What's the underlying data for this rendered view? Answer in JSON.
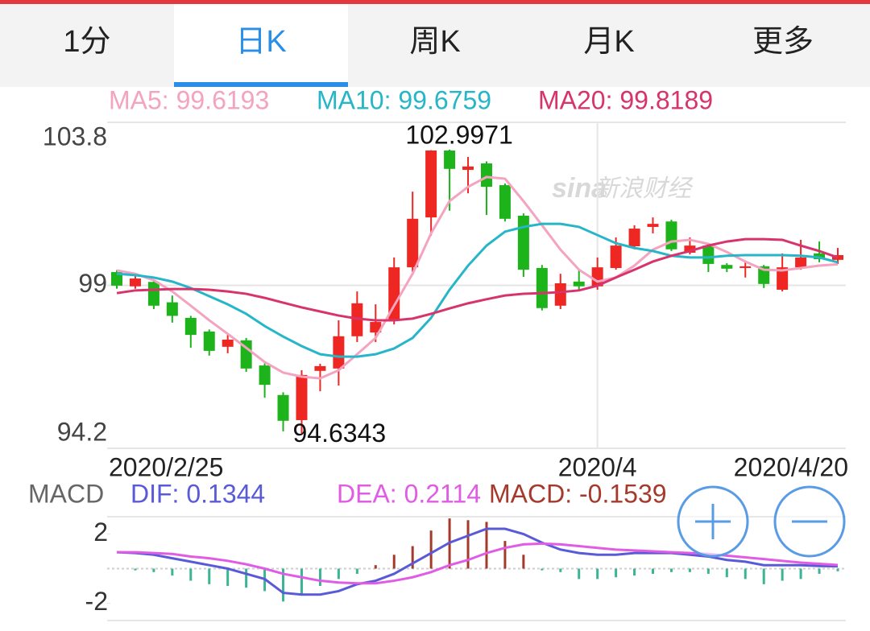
{
  "tabs": [
    "1分",
    "日K",
    "周K",
    "月K",
    "更多"
  ],
  "active_tab": 1,
  "chart_data": [
    {
      "type": "candlestick",
      "watermark_logo": "sina",
      "watermark": "新浪财经",
      "categories": [
        "2020/2/25",
        null,
        null,
        null,
        null,
        null,
        null,
        null,
        null,
        null,
        null,
        null,
        null,
        null,
        null,
        null,
        null,
        null,
        null,
        null,
        null,
        null,
        null,
        null,
        null,
        null,
        "2020/4",
        null,
        null,
        null,
        null,
        null,
        null,
        null,
        null,
        null,
        null,
        null,
        null,
        "2020/4/20"
      ],
      "open": [
        99.39,
        98.97,
        99.1,
        98.5,
        98.04,
        97.64,
        97.19,
        97.38,
        96.64,
        95.77,
        95.03,
        96.48,
        96.55,
        97.5,
        97.61,
        97.97,
        99.53,
        101.0,
        102.97,
        102.4,
        102.59,
        101.95,
        101.05,
        99.51,
        98.4,
        99.11,
        98.97,
        99.51,
        100.15,
        100.72,
        100.88,
        99.96,
        100.17,
        99.6,
        99.51,
        99.56,
        98.87,
        99.53,
        99.94,
        99.75
      ],
      "high": [
        99.45,
        99.3,
        99.15,
        98.7,
        98.1,
        97.7,
        97.57,
        97.45,
        96.7,
        95.85,
        96.5,
        96.69,
        97.97,
        98.82,
        98.44,
        99.82,
        101.76,
        102.98,
        102.9971,
        102.78,
        102.65,
        102.0,
        101.12,
        99.6,
        99.34,
        99.46,
        99.82,
        100.41,
        100.77,
        101.0,
        100.93,
        100.41,
        100.2,
        99.65,
        99.7,
        99.6,
        99.94,
        100.34,
        100.29,
        100.1
      ],
      "low": [
        98.9,
        98.9,
        98.3,
        97.9,
        97.16,
        96.93,
        97.0,
        96.45,
        95.69,
        94.7,
        94.6343,
        95.88,
        96.05,
        97.33,
        97.33,
        97.85,
        99.4,
        100.46,
        101.2,
        101.71,
        101.07,
        100.88,
        99.25,
        98.26,
        98.3,
        98.87,
        98.87,
        99.46,
        100.06,
        100.53,
        100.01,
        99.91,
        99.39,
        99.39,
        99.23,
        98.92,
        98.82,
        99.46,
        99.68,
        99.63
      ],
      "close": [
        98.99,
        99.2,
        98.4,
        98.1,
        97.54,
        97.07,
        97.4,
        96.55,
        96.07,
        95.01,
        96.36,
        96.62,
        97.5,
        98.47,
        97.92,
        99.53,
        100.96,
        102.97,
        102.43,
        102.5,
        101.9,
        100.96,
        99.46,
        98.33,
        99.06,
        98.97,
        99.53,
        100.17,
        100.67,
        100.81,
        100.06,
        100.17,
        99.63,
        99.49,
        99.56,
        99.04,
        99.53,
        99.82,
        99.77,
        99.89
      ],
      "up_color": "#ee2722",
      "down_color": "#1db31a",
      "series": [
        {
          "name": "MA5: 99.6193",
          "color": "#f4a3c0",
          "values": [
            99.44,
            99.34,
            99.15,
            98.82,
            98.4,
            97.97,
            97.57,
            97.16,
            96.74,
            96.43,
            96.31,
            96.26,
            96.5,
            96.97,
            97.45,
            98.4,
            99.34,
            100.53,
            101.48,
            101.9,
            102.19,
            102.14,
            101.48,
            100.77,
            100.05,
            99.46,
            99.11,
            99.23,
            99.58,
            100.05,
            100.29,
            100.34,
            100.22,
            99.98,
            99.7,
            99.46,
            99.44,
            99.51,
            99.58,
            99.6193
          ]
        },
        {
          "name": "MA10: 99.6759",
          "color": "#26b6c8",
          "values": [
            99.34,
            99.3,
            99.23,
            99.11,
            98.92,
            98.68,
            98.44,
            98.16,
            97.8,
            97.49,
            97.21,
            96.97,
            96.9,
            96.9,
            96.97,
            97.14,
            97.45,
            98.04,
            98.87,
            99.58,
            100.17,
            100.58,
            100.72,
            100.81,
            100.81,
            100.72,
            100.48,
            100.24,
            100.1,
            100.01,
            99.87,
            99.82,
            99.82,
            99.87,
            99.89,
            99.89,
            99.89,
            99.87,
            99.82,
            99.6759
          ]
        },
        {
          "name": "MA20: 99.8189",
          "color": "#d8346c",
          "values": [
            98.77,
            98.85,
            98.87,
            98.89,
            98.89,
            98.87,
            98.82,
            98.75,
            98.63,
            98.49,
            98.35,
            98.23,
            98.11,
            98.02,
            97.97,
            97.97,
            98.02,
            98.16,
            98.32,
            98.47,
            98.59,
            98.7,
            98.75,
            98.77,
            98.8,
            98.85,
            98.99,
            99.23,
            99.46,
            99.7,
            99.87,
            100.01,
            100.17,
            100.29,
            100.36,
            100.36,
            100.34,
            100.17,
            100.01,
            99.8189
          ]
        }
      ],
      "ylim": [
        94.2,
        103.8
      ],
      "yticks": [
        94.2,
        99,
        103.8
      ],
      "grid": true
    },
    {
      "type": "macd",
      "title": "MACD",
      "series": [
        {
          "name": "DIF: 0.1344",
          "color": "#5a5ad8",
          "values": [
            0.95,
            0.9,
            0.8,
            0.6,
            0.4,
            0.2,
            0,
            -0.3,
            -0.6,
            -1.4,
            -1.5,
            -1.5,
            -1.3,
            -0.9,
            -0.7,
            -0.3,
            0.3,
            0.9,
            1.5,
            1.9,
            2.3,
            2.3,
            2.0,
            1.5,
            1.1,
            0.9,
            0.8,
            0.8,
            0.9,
            0.9,
            0.9,
            0.8,
            0.7,
            0.5,
            0.4,
            0.2,
            0.2,
            0.2,
            0.15,
            0.1344
          ]
        },
        {
          "name": "DEA: 0.2114",
          "color": "#e05ce4",
          "values": [
            0.95,
            0.95,
            0.9,
            0.85,
            0.7,
            0.6,
            0.45,
            0.25,
            0,
            -0.3,
            -0.5,
            -0.7,
            -0.8,
            -0.85,
            -0.85,
            -0.7,
            -0.5,
            -0.2,
            0.2,
            0.5,
            0.9,
            1.2,
            1.4,
            1.45,
            1.4,
            1.3,
            1.2,
            1.1,
            1.05,
            1.0,
            0.95,
            0.9,
            0.85,
            0.75,
            0.65,
            0.55,
            0.45,
            0.35,
            0.28,
            0.2114
          ]
        },
        {
          "name": "MACD: -0.1539",
          "color": "#a53a2c",
          "negative_color": "#3bb494",
          "values": [
            0,
            -0.1,
            -0.2,
            -0.4,
            -0.7,
            -0.9,
            -1.0,
            -1.1,
            -1.3,
            -1.9,
            -1.5,
            -1.0,
            -0.6,
            -0.3,
            0.2,
            0.8,
            1.3,
            2.2,
            2.9,
            2.8,
            2.7,
            1.6,
            0.8,
            -0.1,
            -0.2,
            -0.6,
            -0.6,
            -0.5,
            -0.4,
            -0.3,
            -0.2,
            -0.2,
            -0.3,
            -0.5,
            -0.6,
            -0.9,
            -0.7,
            -0.6,
            -0.3,
            -0.1539
          ]
        }
      ],
      "ylim": [
        -3,
        3
      ],
      "yticks": [
        -2,
        2
      ]
    }
  ]
}
